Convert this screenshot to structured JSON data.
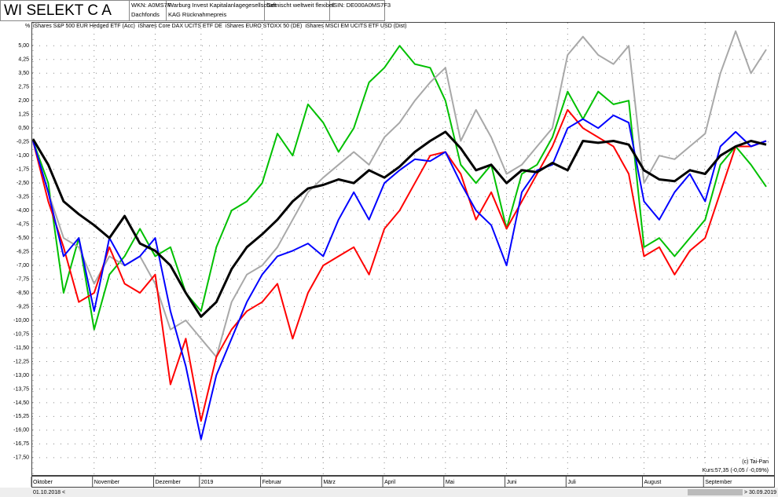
{
  "header": {
    "title": "WI SELEKT C A",
    "wkn": "WKN: A0MS7F",
    "fund_type": "Dachfonds",
    "company": "Warburg Invest Kapitalanlagegesellschaft",
    "price_type": "KAG Rücknahmepreis",
    "category": "Gemischt weltweit flexibel",
    "isin": "ISIN: DE000A0MS7F3"
  },
  "footer": {
    "copyright": "(c) Tai-Pan",
    "price_info": "Kurs:57,35 (-0,05 / -0,09%)",
    "start_date": "01.10.2018 <",
    "end_date": "> 30.09.2019"
  },
  "chart_data": {
    "type": "line",
    "y_label": "%",
    "grid": true,
    "categories": [
      "Oktober",
      null,
      null,
      null,
      "November",
      null,
      null,
      null,
      "Dezember",
      null,
      null,
      "2019",
      null,
      null,
      null,
      "Februar",
      null,
      null,
      null,
      "März",
      null,
      null,
      null,
      "April",
      null,
      null,
      null,
      "Mai",
      null,
      null,
      null,
      "Juni",
      null,
      null,
      null,
      "Juli",
      null,
      null,
      null,
      null,
      "August",
      null,
      null,
      null,
      "September",
      null,
      null,
      null,
      null
    ],
    "ylim": [
      -18.45,
      6.3
    ],
    "yticks": [
      {
        "value": 5,
        "label": "5,00"
      },
      {
        "value": 4.25,
        "label": "4,25"
      },
      {
        "value": 3.5,
        "label": "3,50"
      },
      {
        "value": 2.75,
        "label": "2,75"
      },
      {
        "value": 2,
        "label": "2,00"
      },
      {
        "value": 1.25,
        "label": "1,25"
      },
      {
        "value": 0.5,
        "label": "0,50"
      },
      {
        "value": -0.25,
        "label": "-0,25"
      },
      {
        "value": -1,
        "label": "-1,00"
      },
      {
        "value": -1.75,
        "label": "-1,75"
      },
      {
        "value": -2.5,
        "label": "-2,50"
      },
      {
        "value": -3.25,
        "label": "-3,25"
      },
      {
        "value": -4,
        "label": "-4,00"
      },
      {
        "value": -4.75,
        "label": "-4,75"
      },
      {
        "value": -5.5,
        "label": "-5,50"
      },
      {
        "value": -6.25,
        "label": "-6,25"
      },
      {
        "value": -7,
        "label": "-7,00"
      },
      {
        "value": -7.75,
        "label": "-7,75"
      },
      {
        "value": -8.5,
        "label": "-8,50"
      },
      {
        "value": -9.25,
        "label": "-9,25"
      },
      {
        "value": -10,
        "label": "-10,00"
      },
      {
        "value": -10.75,
        "label": "-10,75"
      },
      {
        "value": -11.5,
        "label": "-11,50"
      },
      {
        "value": -12.25,
        "label": "-12,25"
      },
      {
        "value": -13,
        "label": "-13,00"
      },
      {
        "value": -13.75,
        "label": "-13,75"
      },
      {
        "value": -14.5,
        "label": "-14,50"
      },
      {
        "value": -15.25,
        "label": "-15,25"
      },
      {
        "value": -16,
        "label": "-16,00"
      },
      {
        "value": -16.75,
        "label": "-16,75"
      },
      {
        "value": -17.5,
        "label": "-17,50"
      }
    ],
    "series": [
      {
        "name": "iShares S&P 500 EUR Hedged ETF (Acc)",
        "color": "#0000ff",
        "values": [
          -0.2,
          -3,
          -6.5,
          -5.5,
          -9.5,
          -5.5,
          -7,
          -6.5,
          -5.5,
          -9.5,
          -12.5,
          -16.5,
          -13,
          -11,
          -9,
          -7.5,
          -6.5,
          -6.2,
          -5.8,
          -6.5,
          -4.5,
          -3,
          -4.5,
          -2.5,
          -1.8,
          -1.2,
          -1.3,
          -0.8,
          -2.5,
          -4,
          -4.8,
          -7,
          -3,
          -1.8,
          -1.5,
          0.5,
          1,
          0.5,
          1.2,
          0.8,
          -3.5,
          -4.5,
          -3,
          -2,
          -3.5,
          -0.5,
          0.3,
          -0.5,
          -0.2
        ]
      },
      {
        "name": "iShares Core DAX UCITS ETF DE",
        "color": "#ff0000",
        "values": [
          -0.2,
          -3.5,
          -6,
          -9,
          -8.5,
          -6,
          -8,
          -8.5,
          -7.5,
          -13.5,
          -11,
          -15.5,
          -12,
          -10.5,
          -9.5,
          -9,
          -8,
          -11,
          -8.5,
          -7,
          -6.5,
          -6,
          -7.5,
          -5,
          -4,
          -2.5,
          -1,
          -0.8,
          -2,
          -4.5,
          -3,
          -5,
          -3.5,
          -2,
          -0.5,
          1.5,
          0.5,
          0,
          -0.5,
          -2,
          -6.5,
          -6,
          -7.5,
          -6.2,
          -5.5,
          -3,
          -0.5,
          -0.5,
          -0.2
        ]
      },
      {
        "name": "iShares EURO STOXX 50 (DE)",
        "color": "#a8a8a8",
        "values": [
          -0.2,
          -3,
          -5.5,
          -6,
          -8,
          -6.5,
          -7,
          -6.5,
          -8,
          -10.5,
          -10,
          -11,
          -12,
          -9,
          -7.5,
          -7,
          -6,
          -4.5,
          -3,
          -2.2,
          -1.5,
          -0.8,
          -1.5,
          0,
          0.8,
          2,
          3,
          3.8,
          -0.2,
          1.5,
          0,
          -2,
          -1.5,
          -0.5,
          0.5,
          4.5,
          5.5,
          4.5,
          4,
          5,
          -2.5,
          -1,
          -1.2,
          -0.5,
          0.2,
          3.5,
          5.8,
          3.5,
          4.8
        ]
      },
      {
        "name": "iShares MSCI EM UCITS ETF USD (Dist)",
        "color": "#00c000",
        "values": [
          -0.2,
          -2.5,
          -8.5,
          -5.5,
          -10.5,
          -7.5,
          -6.5,
          -5,
          -6.5,
          -6,
          -8.5,
          -9.5,
          -6,
          -4,
          -3.5,
          -2.5,
          0.2,
          -1,
          1.8,
          0.8,
          -0.8,
          0.5,
          3,
          3.8,
          5,
          4,
          3.8,
          2,
          -1.5,
          -2.5,
          -1.5,
          -5,
          -2,
          -1.5,
          0,
          2.5,
          1,
          2.5,
          1.8,
          2,
          -6,
          -5.5,
          -6.5,
          -5.5,
          -4.5,
          -1.5,
          -0.5,
          -1.5,
          -2.7
        ]
      },
      {
        "color": "#000000",
        "values": [
          -0.1,
          -1.5,
          -3.5,
          -4.2,
          -4.8,
          -5.5,
          -4.3,
          -5.8,
          -6.2,
          -7,
          -8.5,
          -9.8,
          -9,
          -7.2,
          -6,
          -5.3,
          -4.5,
          -3.5,
          -2.8,
          -2.6,
          -2.3,
          -2.5,
          -1.8,
          -2.2,
          -1.6,
          -0.8,
          -0.2,
          0.3,
          -0.6,
          -1.8,
          -1.5,
          -2.5,
          -1.8,
          -1.9,
          -1.4,
          -1.8,
          -0.2,
          -0.3,
          -0.2,
          -0.4,
          -1.8,
          -2.3,
          -2.4,
          -1.8,
          -2,
          -1,
          -0.5,
          -0.2,
          -0.4
        ]
      }
    ]
  }
}
